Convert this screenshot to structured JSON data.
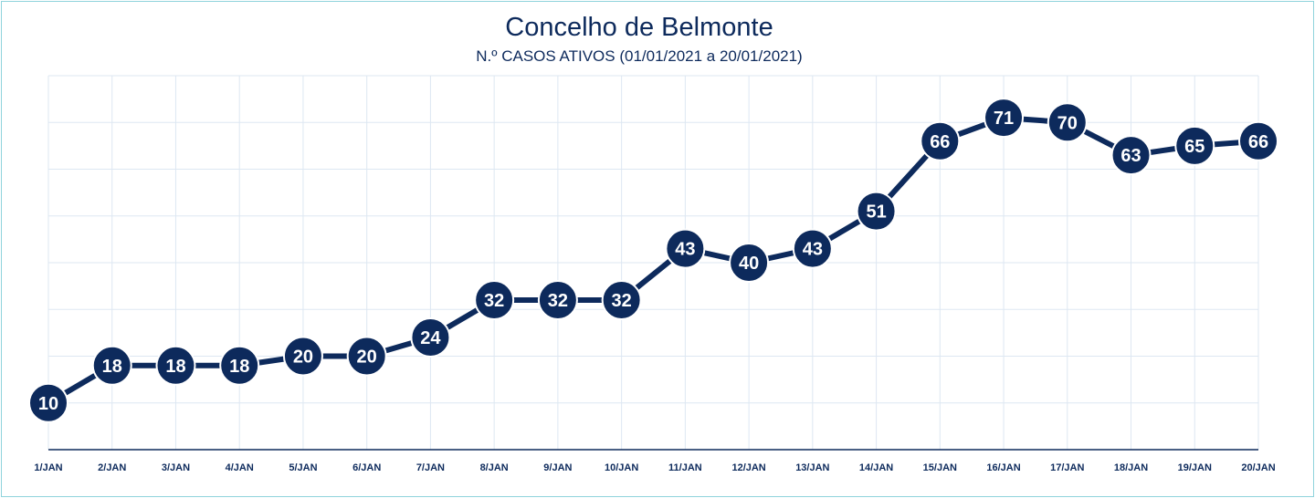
{
  "chart_data": {
    "type": "line",
    "title": "Concelho de Belmonte",
    "subtitle": "N.º CASOS ATIVOS (01/01/2021 a 20/01/2021)",
    "xlabel": "",
    "ylabel": "",
    "categories": [
      "1/JAN",
      "2/JAN",
      "3/JAN",
      "4/JAN",
      "5/JAN",
      "6/JAN",
      "7/JAN",
      "8/JAN",
      "9/JAN",
      "10/JAN",
      "11/JAN",
      "12/JAN",
      "13/JAN",
      "14/JAN",
      "15/JAN",
      "16/JAN",
      "17/JAN",
      "18/JAN",
      "19/JAN",
      "20/JAN"
    ],
    "series": [
      {
        "name": "",
        "values": [
          10,
          18,
          18,
          18,
          20,
          20,
          24,
          32,
          32,
          32,
          43,
          40,
          43,
          51,
          66,
          71,
          70,
          63,
          65,
          66
        ]
      }
    ],
    "ylim": [
      0,
      80
    ],
    "grid": true,
    "legend": "none",
    "colors": {
      "line": "#0d2a5c",
      "marker": "#0d2a5c",
      "label": "#ffffff",
      "grid": "#dde7f2",
      "axis": "#0d2a5c",
      "border": "#8fd3dc"
    }
  }
}
